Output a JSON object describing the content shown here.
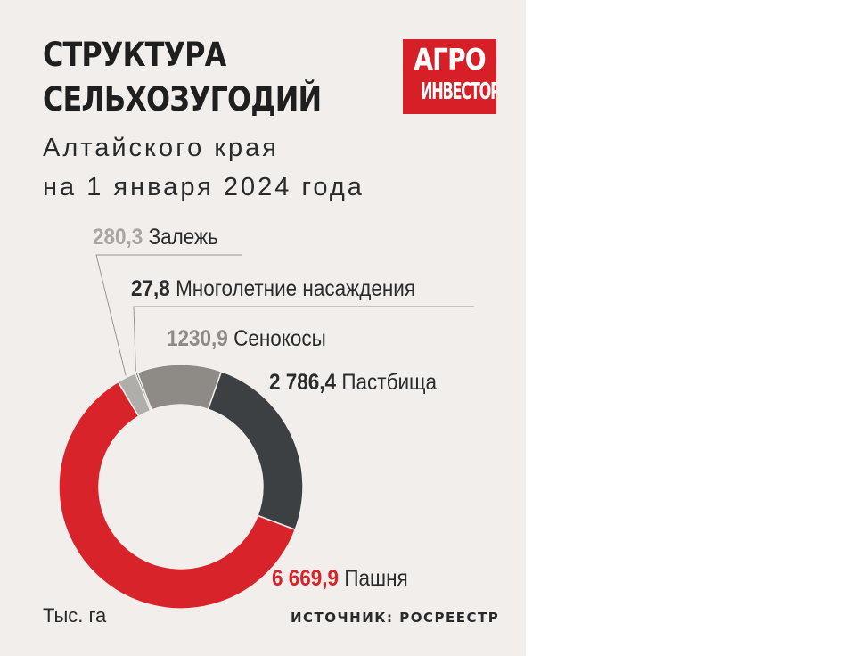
{
  "header": {
    "title_line1": "СТРУКТУРА",
    "title_line2": "СЕЛЬХОЗУГОДИЙ",
    "subtitle_line1": "Алтайского края",
    "subtitle_line2": "на 1 января 2024 года"
  },
  "logo": {
    "line1": "АГРО",
    "line2": "ИНВЕСТОР",
    "color": "#d61f26"
  },
  "footer": {
    "units": "Тыс. га",
    "source": "ИСТОЧНИК: РОСРЕЕСТР"
  },
  "chart_data": {
    "type": "pie",
    "donut": true,
    "units": "Тыс. га",
    "slices": [
      {
        "label": "Залежь",
        "value_text": "280,3",
        "value": 280.3,
        "color": "#b0aeab"
      },
      {
        "label": "Многолетние насаждения",
        "value_text": "27,8",
        "value": 27.8,
        "color": "#232323"
      },
      {
        "label": "Сенокосы",
        "value_text": "1230,9",
        "value": 1230.9,
        "color": "#8e8b87"
      },
      {
        "label": "Пастбища",
        "value_text": "2 786,4",
        "value": 2786.4,
        "color": "#3d4043"
      },
      {
        "label": "Пашня",
        "value_text": "6 669,9",
        "value": 6669.9,
        "color": "#d9232b"
      }
    ],
    "label_value_colors": [
      "#a8a5a2",
      "#2b2b2b",
      "#8e8b87",
      "#2b2b2b",
      "#d9232b"
    ]
  }
}
